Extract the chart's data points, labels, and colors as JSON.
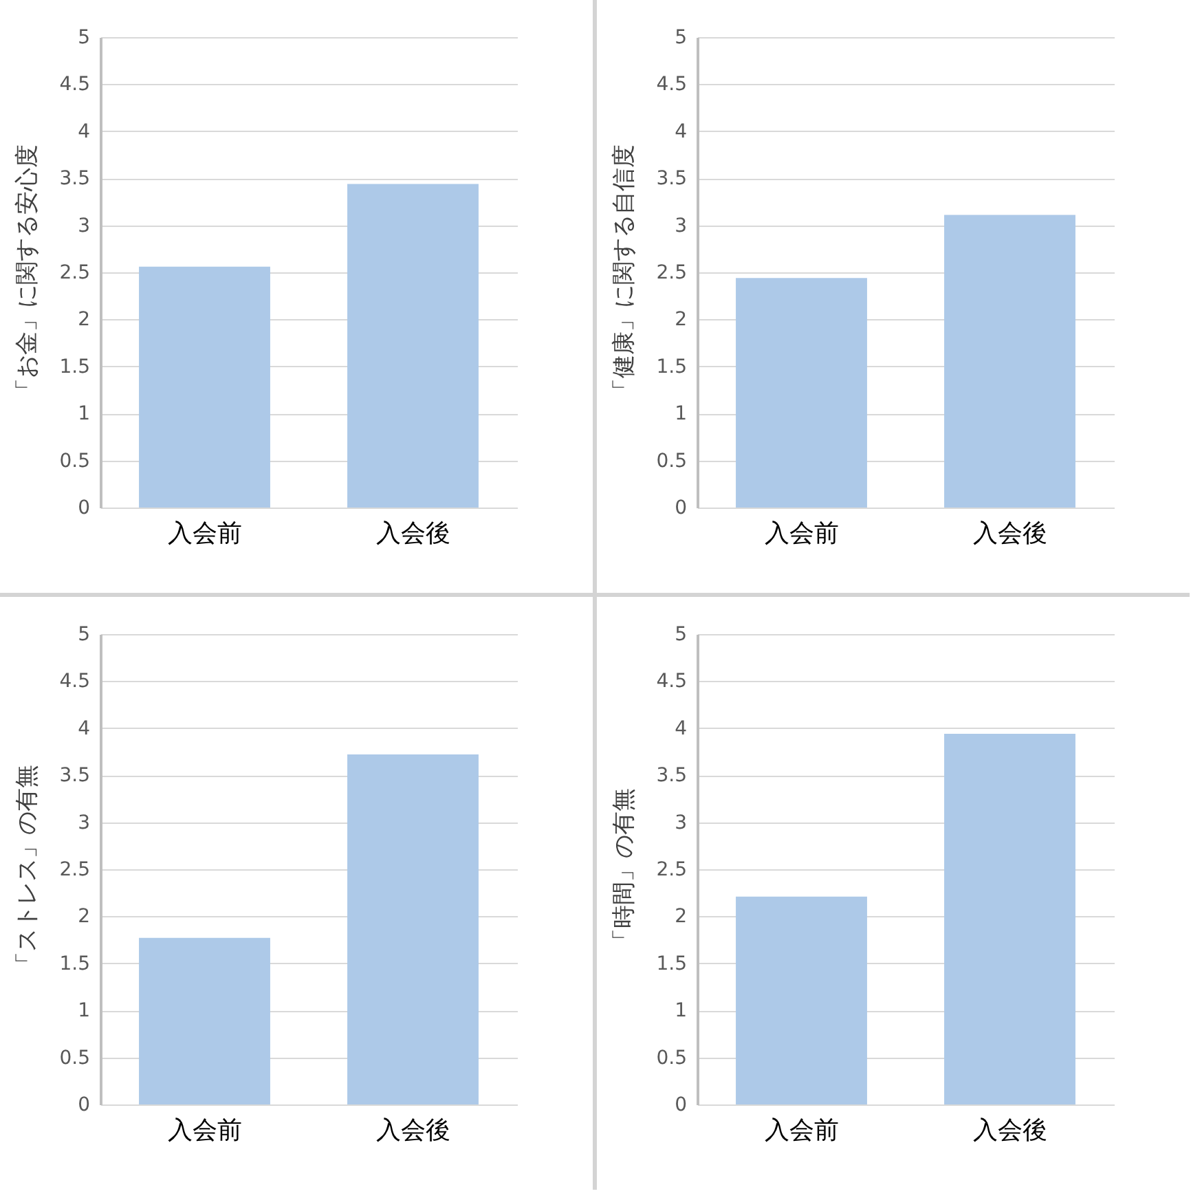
{
  "chart_data": [
    {
      "type": "bar",
      "ylabel": "「お金」に関する安心度",
      "categories": [
        "入会前",
        "入会後"
      ],
      "values": [
        2.56,
        3.44
      ],
      "color": "#adc9e8",
      "ylim": [
        0,
        5
      ],
      "yticks": [
        0,
        0.5,
        1,
        1.5,
        2,
        2.5,
        3,
        3.5,
        4,
        4.5,
        5
      ],
      "grid": "y"
    },
    {
      "type": "bar",
      "ylabel": "「健康」に関する自信度",
      "categories": [
        "入会前",
        "入会後"
      ],
      "values": [
        2.44,
        3.11
      ],
      "color": "#adc9e8",
      "ylim": [
        0,
        5
      ],
      "yticks": [
        0,
        0.5,
        1,
        1.5,
        2,
        2.5,
        3,
        3.5,
        4,
        4.5,
        5
      ],
      "grid": "y"
    },
    {
      "type": "bar",
      "ylabel": "「ストレス」の有無",
      "categories": [
        "入会前",
        "入会後"
      ],
      "values": [
        1.77,
        3.72
      ],
      "color": "#adc9e8",
      "ylim": [
        0,
        5
      ],
      "yticks": [
        0,
        0.5,
        1,
        1.5,
        2,
        2.5,
        3,
        3.5,
        4,
        4.5,
        5
      ],
      "grid": "y"
    },
    {
      "type": "bar",
      "ylabel": "「時間」の有無",
      "categories": [
        "入会前",
        "入会後"
      ],
      "values": [
        2.21,
        3.94
      ],
      "color": "#adc9e8",
      "ylim": [
        0,
        5
      ],
      "yticks": [
        0,
        0.5,
        1,
        1.5,
        2,
        2.5,
        3,
        3.5,
        4,
        4.5,
        5
      ],
      "grid": "y"
    }
  ]
}
